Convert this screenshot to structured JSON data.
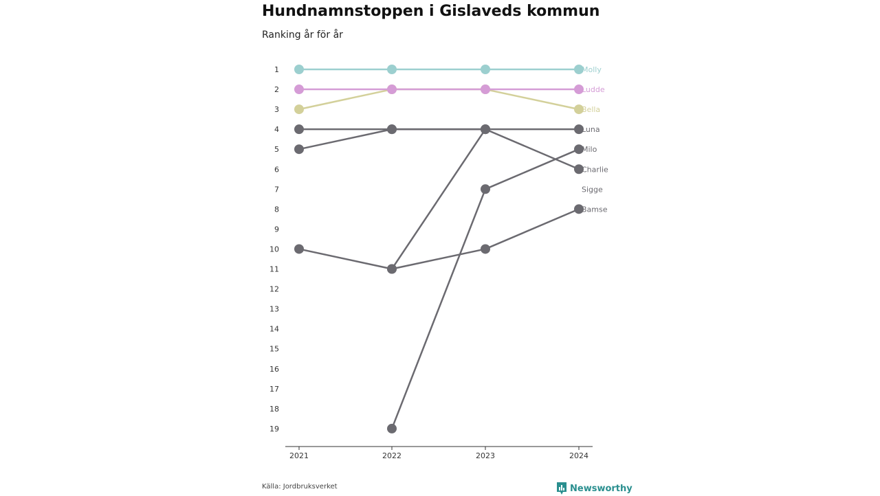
{
  "title": "Hundnamnstoppen i Gislaveds kommun",
  "subtitle": "Ranking år för år",
  "source": "Källa: Jordbruksverket",
  "brand": {
    "name": "Newsworthy",
    "icon": "newsworthy-logo-icon",
    "color": "#2a8f8f"
  },
  "colors": {
    "Molly": "#9ccfcf",
    "Ludde": "#d59cd6",
    "Bella": "#d3d09a",
    "other": "#6b6a70",
    "axis": "#333333"
  },
  "chart_data": {
    "type": "line",
    "x": [
      "2021",
      "2022",
      "2023",
      "2024"
    ],
    "y_ticks": [
      "1",
      "2",
      "3",
      "4",
      "5",
      "6",
      "7",
      "8",
      "9",
      "10",
      "11",
      "12",
      "13",
      "14",
      "15",
      "16",
      "17",
      "18",
      "19"
    ],
    "ylim": [
      1,
      19
    ],
    "y_reversed": true,
    "series": [
      {
        "name": "Molly",
        "values": [
          1,
          1,
          1,
          1
        ],
        "highlight": true
      },
      {
        "name": "Ludde",
        "values": [
          2,
          2,
          2,
          2
        ],
        "highlight": true
      },
      {
        "name": "Bella",
        "values": [
          3,
          2,
          2,
          3
        ],
        "highlight": true
      },
      {
        "name": "Luna",
        "values": [
          4,
          4,
          4,
          4
        ]
      },
      {
        "name": "Milo",
        "values": [
          null,
          19,
          7,
          5
        ]
      },
      {
        "name": "Charlie",
        "values": [
          5,
          4,
          4,
          6
        ]
      },
      {
        "name": "Sigge",
        "values": [
          10,
          11,
          4,
          null
        ]
      },
      {
        "name": "Bamse",
        "values": [
          null,
          11,
          10,
          8
        ]
      }
    ],
    "end_labels": [
      "Molly",
      "Ludde",
      "Bella",
      "Luna",
      "Milo",
      "Charlie",
      "Sigge",
      "Bamse"
    ],
    "end_label_ranks": [
      1,
      2,
      3,
      4,
      5,
      6,
      7,
      8
    ]
  }
}
